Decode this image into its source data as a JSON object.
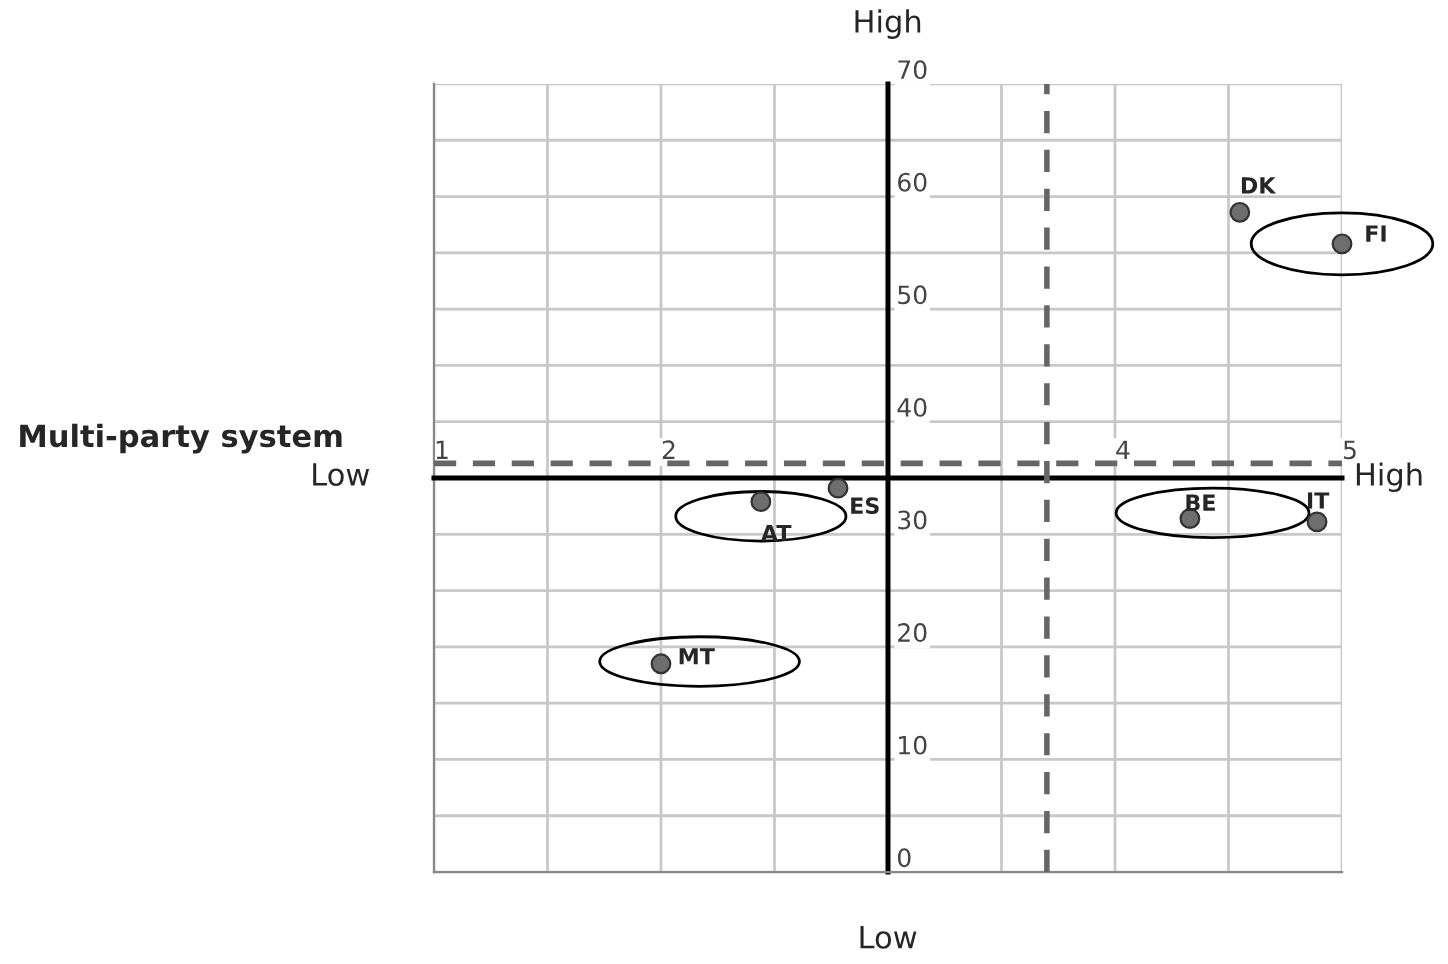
{
  "chart_data": {
    "type": "scatter",
    "series": [
      {
        "color": "#6e6e6e",
        "x": [
          4.55,
          5.0,
          2.78,
          2.44,
          4.33,
          4.89,
          2.0
        ],
        "values": [
          58.6,
          55.8,
          34.1,
          32.9,
          31.4,
          31.1,
          18.5
        ]
      }
    ],
    "marker": "circle",
    "xlim": [
      1,
      5
    ],
    "ylim": [
      0,
      70
    ],
    "xticks": [
      1,
      {
        "value": 1.5,
        "label": null
      },
      2,
      {
        "value": 2.5,
        "label": null
      },
      {
        "value": 3,
        "label": null
      },
      {
        "value": 3.5,
        "label": null
      },
      4,
      {
        "value": 4.5,
        "label": null
      },
      5
    ],
    "yticks": [
      0,
      {
        "value": 5,
        "label": null
      },
      10,
      {
        "value": 15,
        "label": null
      },
      20,
      {
        "value": 25,
        "label": null
      },
      30,
      {
        "value": 35,
        "label": null
      },
      40,
      {
        "value": 45,
        "label": null
      },
      50,
      {
        "value": 55,
        "label": null
      },
      60,
      {
        "value": 65,
        "label": null
      },
      70
    ],
    "grid": true,
    "ref_lines": [
      {
        "axis": "x",
        "value": 3.7,
        "line_style": "dashed",
        "color": "#666666"
      },
      {
        "axis": "y",
        "value": 36.3,
        "line_style": "dashed",
        "color": "#666666"
      }
    ],
    "annotations": [
      {
        "text": "DK",
        "x": 4.55,
        "y": 58.6
      },
      {
        "text": "FI",
        "x": 5.0,
        "y": 55.8
      },
      {
        "text": "ES",
        "x": 2.78,
        "y": 34.1
      },
      {
        "text": "AT",
        "x": 2.44,
        "y": 32.9
      },
      {
        "text": "BE",
        "x": 4.33,
        "y": 31.4
      },
      {
        "text": "IT",
        "x": 4.89,
        "y": 31.1
      },
      {
        "text": "MT",
        "x": 2.0,
        "y": 18.5
      },
      "High",
      "Low",
      "Low",
      "High",
      "Multi-party system"
    ]
  }
}
